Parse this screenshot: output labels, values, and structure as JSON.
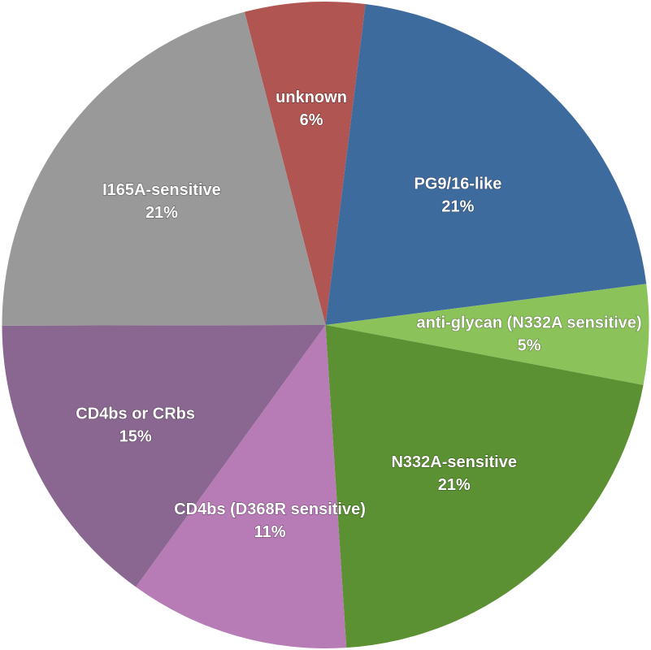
{
  "chart_data": {
    "type": "pie",
    "title": "",
    "start": "12 o'clock, counter-clockwise, largest offset to unknown",
    "slices": [
      {
        "label": "unknown",
        "value": 6,
        "value_label": "6%",
        "color": "#b05552"
      },
      {
        "label": "PG9/16-like",
        "value": 21,
        "value_label": "21%",
        "color": "#3e6b9e"
      },
      {
        "label": "anti-glycan (N332A sensitive)",
        "value": 5,
        "value_label": "5%",
        "color": "#8bc25a"
      },
      {
        "label": "N332A-sensitive",
        "value": 21,
        "value_label": "21%",
        "color": "#5b9132"
      },
      {
        "label": "CD4bs (D368R sensitive)",
        "value": 11,
        "value_label": "11%",
        "color": "#b77bb6"
      },
      {
        "label": "CD4bs or CRbs",
        "value": 15,
        "value_label": "15%",
        "color": "#8a6790"
      },
      {
        "label": "I165A-sensitive",
        "value": 21,
        "value_label": "21%",
        "color": "#999999"
      }
    ]
  }
}
